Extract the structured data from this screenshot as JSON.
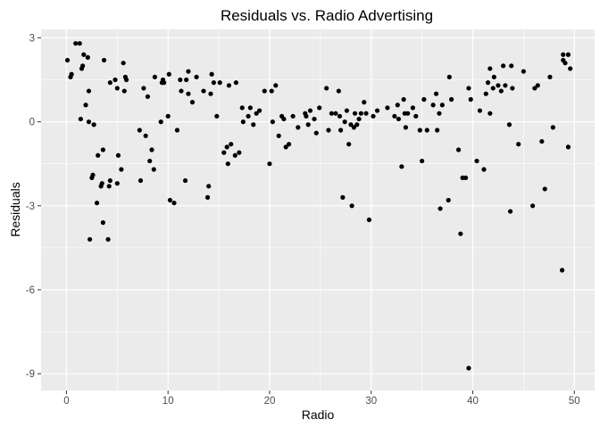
{
  "chart_data": {
    "type": "scatter",
    "title": "Residuals vs. Radio Advertising",
    "xlabel": "Radio",
    "ylabel": "Residuals",
    "xlim": [
      -2.5,
      52.0
    ],
    "ylim": [
      -9.6,
      3.3
    ],
    "xticks": [
      0,
      10,
      20,
      30,
      40,
      50
    ],
    "yticks": [
      3,
      0,
      -3,
      -6,
      -9
    ],
    "xtick_labels": [
      "0",
      "10",
      "20",
      "30",
      "40",
      "50"
    ],
    "ytick_labels": [
      "3",
      "0",
      "-3",
      "-6",
      "-9"
    ],
    "grid": true,
    "background": "#ebebeb",
    "grid_major_color": "#ffffff",
    "point_color": "#000000",
    "points": [
      [
        0.1,
        2.2
      ],
      [
        0.4,
        1.6
      ],
      [
        0.5,
        1.7
      ],
      [
        0.9,
        2.8
      ],
      [
        1.3,
        2.8
      ],
      [
        1.4,
        0.1
      ],
      [
        1.5,
        1.9
      ],
      [
        1.6,
        2.0
      ],
      [
        1.7,
        2.4
      ],
      [
        1.9,
        0.6
      ],
      [
        2.1,
        2.3
      ],
      [
        2.2,
        1.1
      ],
      [
        2.2,
        0.0
      ],
      [
        2.3,
        -4.2
      ],
      [
        2.5,
        -2.0
      ],
      [
        2.6,
        -1.9
      ],
      [
        2.7,
        -0.1
      ],
      [
        3.0,
        -2.9
      ],
      [
        3.1,
        -1.2
      ],
      [
        3.4,
        -2.3
      ],
      [
        3.5,
        -2.2
      ],
      [
        3.6,
        -1.0
      ],
      [
        3.6,
        -3.6
      ],
      [
        3.7,
        2.2
      ],
      [
        4.1,
        -4.2
      ],
      [
        4.2,
        -2.3
      ],
      [
        4.3,
        -2.1
      ],
      [
        4.3,
        1.4
      ],
      [
        4.8,
        1.5
      ],
      [
        5.0,
        1.2
      ],
      [
        5.0,
        -2.2
      ],
      [
        5.1,
        -1.2
      ],
      [
        5.4,
        -1.7
      ],
      [
        5.6,
        2.1
      ],
      [
        5.7,
        1.1
      ],
      [
        5.8,
        1.6
      ],
      [
        5.9,
        1.5
      ],
      [
        7.2,
        -0.3
      ],
      [
        7.3,
        -2.1
      ],
      [
        7.6,
        1.2
      ],
      [
        7.8,
        -0.5
      ],
      [
        8.0,
        0.9
      ],
      [
        8.2,
        -1.4
      ],
      [
        8.4,
        -1.0
      ],
      [
        8.6,
        -1.7
      ],
      [
        8.7,
        1.6
      ],
      [
        9.3,
        0.0
      ],
      [
        9.4,
        1.4
      ],
      [
        9.5,
        1.5
      ],
      [
        9.6,
        1.4
      ],
      [
        10.0,
        0.2
      ],
      [
        10.1,
        1.7
      ],
      [
        10.2,
        -2.8
      ],
      [
        10.6,
        -2.9
      ],
      [
        10.9,
        -0.3
      ],
      [
        11.2,
        1.5
      ],
      [
        11.3,
        1.1
      ],
      [
        11.7,
        -2.1
      ],
      [
        11.8,
        1.5
      ],
      [
        12.0,
        1.0
      ],
      [
        12.0,
        1.8
      ],
      [
        12.4,
        0.7
      ],
      [
        12.8,
        1.6
      ],
      [
        13.5,
        1.1
      ],
      [
        13.9,
        -2.7
      ],
      [
        14.0,
        -2.3
      ],
      [
        14.2,
        1.0
      ],
      [
        14.3,
        1.7
      ],
      [
        14.5,
        1.4
      ],
      [
        14.8,
        0.2
      ],
      [
        15.1,
        1.4
      ],
      [
        15.5,
        -1.1
      ],
      [
        15.8,
        -0.9
      ],
      [
        15.9,
        -1.5
      ],
      [
        16.0,
        1.3
      ],
      [
        16.2,
        -0.8
      ],
      [
        16.6,
        -1.2
      ],
      [
        16.7,
        1.4
      ],
      [
        17.0,
        -1.1
      ],
      [
        17.3,
        0.5
      ],
      [
        17.4,
        0.0
      ],
      [
        17.9,
        0.2
      ],
      [
        18.1,
        0.5
      ],
      [
        18.4,
        -0.1
      ],
      [
        18.7,
        0.3
      ],
      [
        19.0,
        0.4
      ],
      [
        19.5,
        1.1
      ],
      [
        20.0,
        -1.5
      ],
      [
        20.2,
        1.1
      ],
      [
        20.3,
        0.0
      ],
      [
        20.6,
        1.3
      ],
      [
        20.9,
        -0.5
      ],
      [
        21.2,
        0.2
      ],
      [
        21.4,
        0.1
      ],
      [
        21.6,
        -0.9
      ],
      [
        21.9,
        -0.8
      ],
      [
        22.3,
        0.2
      ],
      [
        22.8,
        -0.2
      ],
      [
        23.5,
        0.3
      ],
      [
        23.6,
        0.2
      ],
      [
        23.8,
        -0.1
      ],
      [
        24.0,
        0.4
      ],
      [
        24.4,
        0.1
      ],
      [
        24.6,
        -0.4
      ],
      [
        24.9,
        0.5
      ],
      [
        25.6,
        1.2
      ],
      [
        25.8,
        -0.3
      ],
      [
        26.1,
        0.3
      ],
      [
        26.5,
        0.3
      ],
      [
        26.8,
        1.1
      ],
      [
        26.9,
        0.2
      ],
      [
        27.0,
        -0.3
      ],
      [
        27.2,
        -2.7
      ],
      [
        27.4,
        0.0
      ],
      [
        27.6,
        0.4
      ],
      [
        27.8,
        -0.8
      ],
      [
        28.0,
        -0.1
      ],
      [
        28.1,
        -3.0
      ],
      [
        28.3,
        -0.2
      ],
      [
        28.4,
        0.3
      ],
      [
        28.6,
        -0.1
      ],
      [
        28.8,
        0.1
      ],
      [
        29.0,
        0.3
      ],
      [
        29.3,
        0.7
      ],
      [
        29.5,
        0.3
      ],
      [
        29.8,
        -3.5
      ],
      [
        30.2,
        0.2
      ],
      [
        30.6,
        0.4
      ],
      [
        31.6,
        0.5
      ],
      [
        32.3,
        0.2
      ],
      [
        32.6,
        0.6
      ],
      [
        32.7,
        0.1
      ],
      [
        33.0,
        -1.6
      ],
      [
        33.2,
        0.8
      ],
      [
        33.3,
        0.3
      ],
      [
        33.4,
        -0.2
      ],
      [
        33.6,
        0.3
      ],
      [
        34.1,
        0.5
      ],
      [
        34.4,
        0.2
      ],
      [
        34.8,
        -0.3
      ],
      [
        35.0,
        -1.4
      ],
      [
        35.2,
        0.8
      ],
      [
        35.5,
        -0.3
      ],
      [
        36.1,
        0.6
      ],
      [
        36.4,
        1.0
      ],
      [
        36.5,
        -0.3
      ],
      [
        36.7,
        0.3
      ],
      [
        36.8,
        -3.1
      ],
      [
        37.0,
        0.6
      ],
      [
        37.6,
        -2.8
      ],
      [
        37.7,
        1.6
      ],
      [
        37.9,
        0.8
      ],
      [
        38.6,
        -1.0
      ],
      [
        38.8,
        -4.0
      ],
      [
        39.0,
        -2.0
      ],
      [
        39.3,
        -2.0
      ],
      [
        39.6,
        -8.8
      ],
      [
        39.6,
        1.2
      ],
      [
        39.8,
        0.8
      ],
      [
        40.4,
        -1.4
      ],
      [
        40.7,
        0.4
      ],
      [
        41.1,
        -1.7
      ],
      [
        41.3,
        1.0
      ],
      [
        41.5,
        1.4
      ],
      [
        41.7,
        0.3
      ],
      [
        41.7,
        1.9
      ],
      [
        42.0,
        1.2
      ],
      [
        42.1,
        1.6
      ],
      [
        42.5,
        1.3
      ],
      [
        42.8,
        1.1
      ],
      [
        43.0,
        2.0
      ],
      [
        43.2,
        1.3
      ],
      [
        43.6,
        -0.1
      ],
      [
        43.7,
        -3.2
      ],
      [
        43.8,
        2.0
      ],
      [
        43.9,
        1.2
      ],
      [
        44.5,
        -0.8
      ],
      [
        45.0,
        1.8
      ],
      [
        45.9,
        -3.0
      ],
      [
        46.1,
        1.2
      ],
      [
        46.4,
        1.3
      ],
      [
        46.8,
        -0.7
      ],
      [
        47.1,
        -2.4
      ],
      [
        47.6,
        1.6
      ],
      [
        47.9,
        -0.2
      ],
      [
        48.8,
        -5.3
      ],
      [
        48.9,
        2.4
      ],
      [
        48.9,
        2.2
      ],
      [
        49.1,
        2.1
      ],
      [
        49.4,
        2.4
      ],
      [
        49.4,
        -0.9
      ],
      [
        49.6,
        1.9
      ]
    ]
  }
}
